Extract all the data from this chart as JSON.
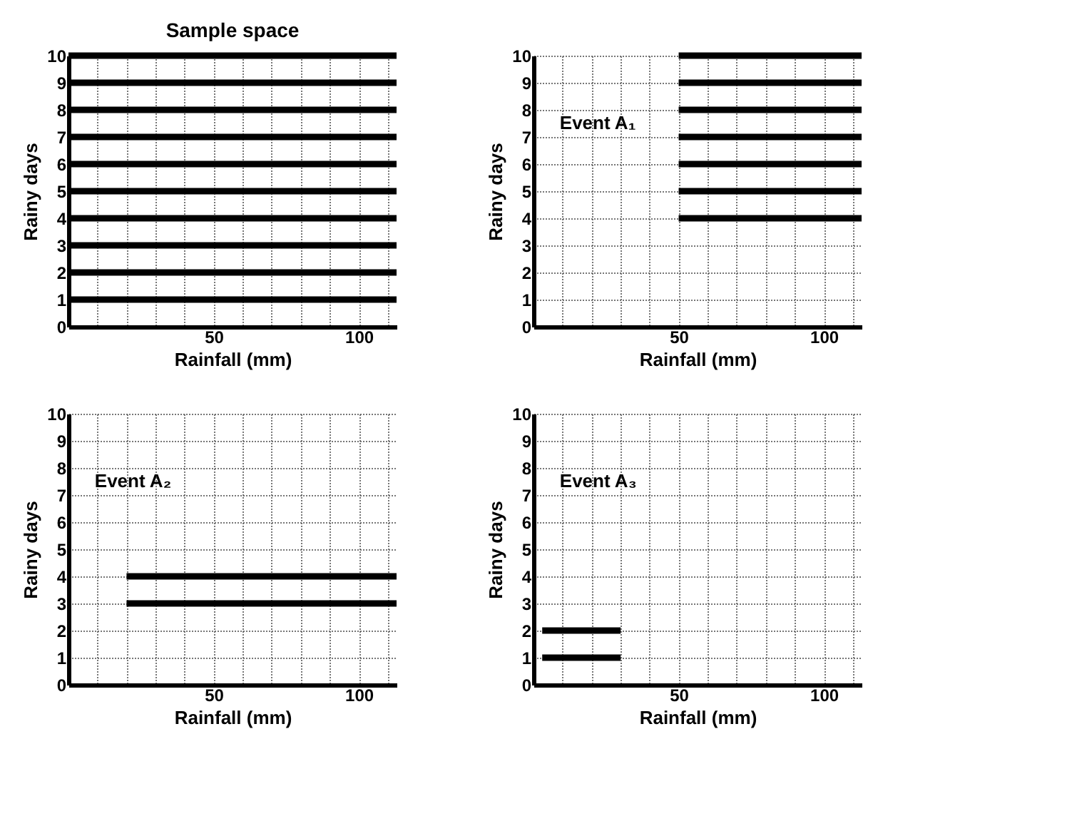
{
  "chart_data": [
    {
      "type": "line",
      "title": "Sample space",
      "xlabel": "Rainfall (mm)",
      "ylabel": "Rainy days",
      "xlim": [
        0,
        113
      ],
      "ylim": [
        0,
        10
      ],
      "xticks": [
        {
          "value": 10,
          "label": null
        },
        {
          "value": 20,
          "label": null
        },
        {
          "value": 30,
          "label": null
        },
        {
          "value": 40,
          "label": null
        },
        50,
        {
          "value": 60,
          "label": null
        },
        {
          "value": 70,
          "label": null
        },
        {
          "value": 80,
          "label": null
        },
        {
          "value": 90,
          "label": null
        },
        100,
        {
          "value": 110,
          "label": null
        }
      ],
      "yticks": [
        0,
        1,
        2,
        3,
        4,
        5,
        6,
        7,
        8,
        9,
        10
      ],
      "grid": true,
      "marker": "none",
      "line_style": "solid",
      "series": [
        {
          "color": "#000000",
          "x": [
            0,
            113
          ],
          "values": [
            1,
            1
          ]
        },
        {
          "color": "#000000",
          "x": [
            0,
            113
          ],
          "values": [
            2,
            2
          ]
        },
        {
          "color": "#000000",
          "x": [
            0,
            113
          ],
          "values": [
            3,
            3
          ]
        },
        {
          "color": "#000000",
          "x": [
            0,
            113
          ],
          "values": [
            4,
            4
          ]
        },
        {
          "color": "#000000",
          "x": [
            0,
            113
          ],
          "values": [
            5,
            5
          ]
        },
        {
          "color": "#000000",
          "x": [
            0,
            113
          ],
          "values": [
            6,
            6
          ]
        },
        {
          "color": "#000000",
          "x": [
            0,
            113
          ],
          "values": [
            7,
            7
          ]
        },
        {
          "color": "#000000",
          "x": [
            0,
            113
          ],
          "values": [
            8,
            8
          ]
        },
        {
          "color": "#000000",
          "x": [
            0,
            113
          ],
          "values": [
            9,
            9
          ]
        },
        {
          "color": "#000000",
          "x": [
            0,
            113
          ],
          "values": [
            10,
            10
          ]
        }
      ]
    },
    {
      "type": "line",
      "annotations": [
        "Event A₁"
      ],
      "xlabel": "Rainfall (mm)",
      "ylabel": "Rainy days",
      "xlim": [
        0,
        113
      ],
      "ylim": [
        0,
        10
      ],
      "xticks": [
        {
          "value": 10,
          "label": null
        },
        {
          "value": 20,
          "label": null
        },
        {
          "value": 30,
          "label": null
        },
        {
          "value": 40,
          "label": null
        },
        50,
        {
          "value": 60,
          "label": null
        },
        {
          "value": 70,
          "label": null
        },
        {
          "value": 80,
          "label": null
        },
        {
          "value": 90,
          "label": null
        },
        100,
        {
          "value": 110,
          "label": null
        }
      ],
      "yticks": [
        0,
        1,
        2,
        3,
        4,
        5,
        6,
        7,
        8,
        9,
        10
      ],
      "grid": true,
      "marker": "none",
      "line_style": "solid",
      "series": [
        {
          "color": "#000000",
          "x": [
            50,
            113
          ],
          "values": [
            4,
            4
          ]
        },
        {
          "color": "#000000",
          "x": [
            50,
            113
          ],
          "values": [
            5,
            5
          ]
        },
        {
          "color": "#000000",
          "x": [
            50,
            113
          ],
          "values": [
            6,
            6
          ]
        },
        {
          "color": "#000000",
          "x": [
            50,
            113
          ],
          "values": [
            7,
            7
          ]
        },
        {
          "color": "#000000",
          "x": [
            50,
            113
          ],
          "values": [
            8,
            8
          ]
        },
        {
          "color": "#000000",
          "x": [
            50,
            113
          ],
          "values": [
            9,
            9
          ]
        },
        {
          "color": "#000000",
          "x": [
            50,
            113
          ],
          "values": [
            10,
            10
          ]
        }
      ]
    },
    {
      "type": "line",
      "annotations": [
        "Event A₂"
      ],
      "xlabel": "Rainfall (mm)",
      "ylabel": "Rainy days",
      "xlim": [
        0,
        113
      ],
      "ylim": [
        0,
        10
      ],
      "xticks": [
        {
          "value": 10,
          "label": null
        },
        {
          "value": 20,
          "label": null
        },
        {
          "value": 30,
          "label": null
        },
        {
          "value": 40,
          "label": null
        },
        50,
        {
          "value": 60,
          "label": null
        },
        {
          "value": 70,
          "label": null
        },
        {
          "value": 80,
          "label": null
        },
        {
          "value": 90,
          "label": null
        },
        100,
        {
          "value": 110,
          "label": null
        }
      ],
      "yticks": [
        0,
        1,
        2,
        3,
        4,
        5,
        6,
        7,
        8,
        9,
        10
      ],
      "grid": true,
      "marker": "none",
      "line_style": "solid",
      "series": [
        {
          "color": "#000000",
          "x": [
            20,
            113
          ],
          "values": [
            3,
            3
          ]
        },
        {
          "color": "#000000",
          "x": [
            20,
            113
          ],
          "values": [
            4,
            4
          ]
        }
      ]
    },
    {
      "type": "line",
      "annotations": [
        "Event A₃"
      ],
      "xlabel": "Rainfall (mm)",
      "ylabel": "Rainy days",
      "xlim": [
        0,
        113
      ],
      "ylim": [
        0,
        10
      ],
      "xticks": [
        {
          "value": 10,
          "label": null
        },
        {
          "value": 20,
          "label": null
        },
        {
          "value": 30,
          "label": null
        },
        {
          "value": 40,
          "label": null
        },
        50,
        {
          "value": 60,
          "label": null
        },
        {
          "value": 70,
          "label": null
        },
        {
          "value": 80,
          "label": null
        },
        {
          "value": 90,
          "label": null
        },
        100,
        {
          "value": 110,
          "label": null
        }
      ],
      "yticks": [
        0,
        1,
        2,
        3,
        4,
        5,
        6,
        7,
        8,
        9,
        10
      ],
      "grid": true,
      "marker": "none",
      "line_style": "solid",
      "series": [
        {
          "color": "#000000",
          "x": [
            3,
            30
          ],
          "values": [
            1,
            1
          ]
        },
        {
          "color": "#000000",
          "x": [
            3,
            30
          ],
          "values": [
            2,
            2
          ]
        }
      ]
    }
  ]
}
